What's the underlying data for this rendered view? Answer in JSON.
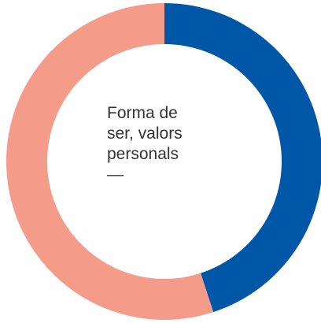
{
  "chart_data": {
    "type": "donut",
    "title": "Forma de ser, valors personals",
    "subtitle": "—",
    "values": [
      45,
      55
    ],
    "colors": [
      "#0057a8",
      "#f59b8a"
    ]
  }
}
